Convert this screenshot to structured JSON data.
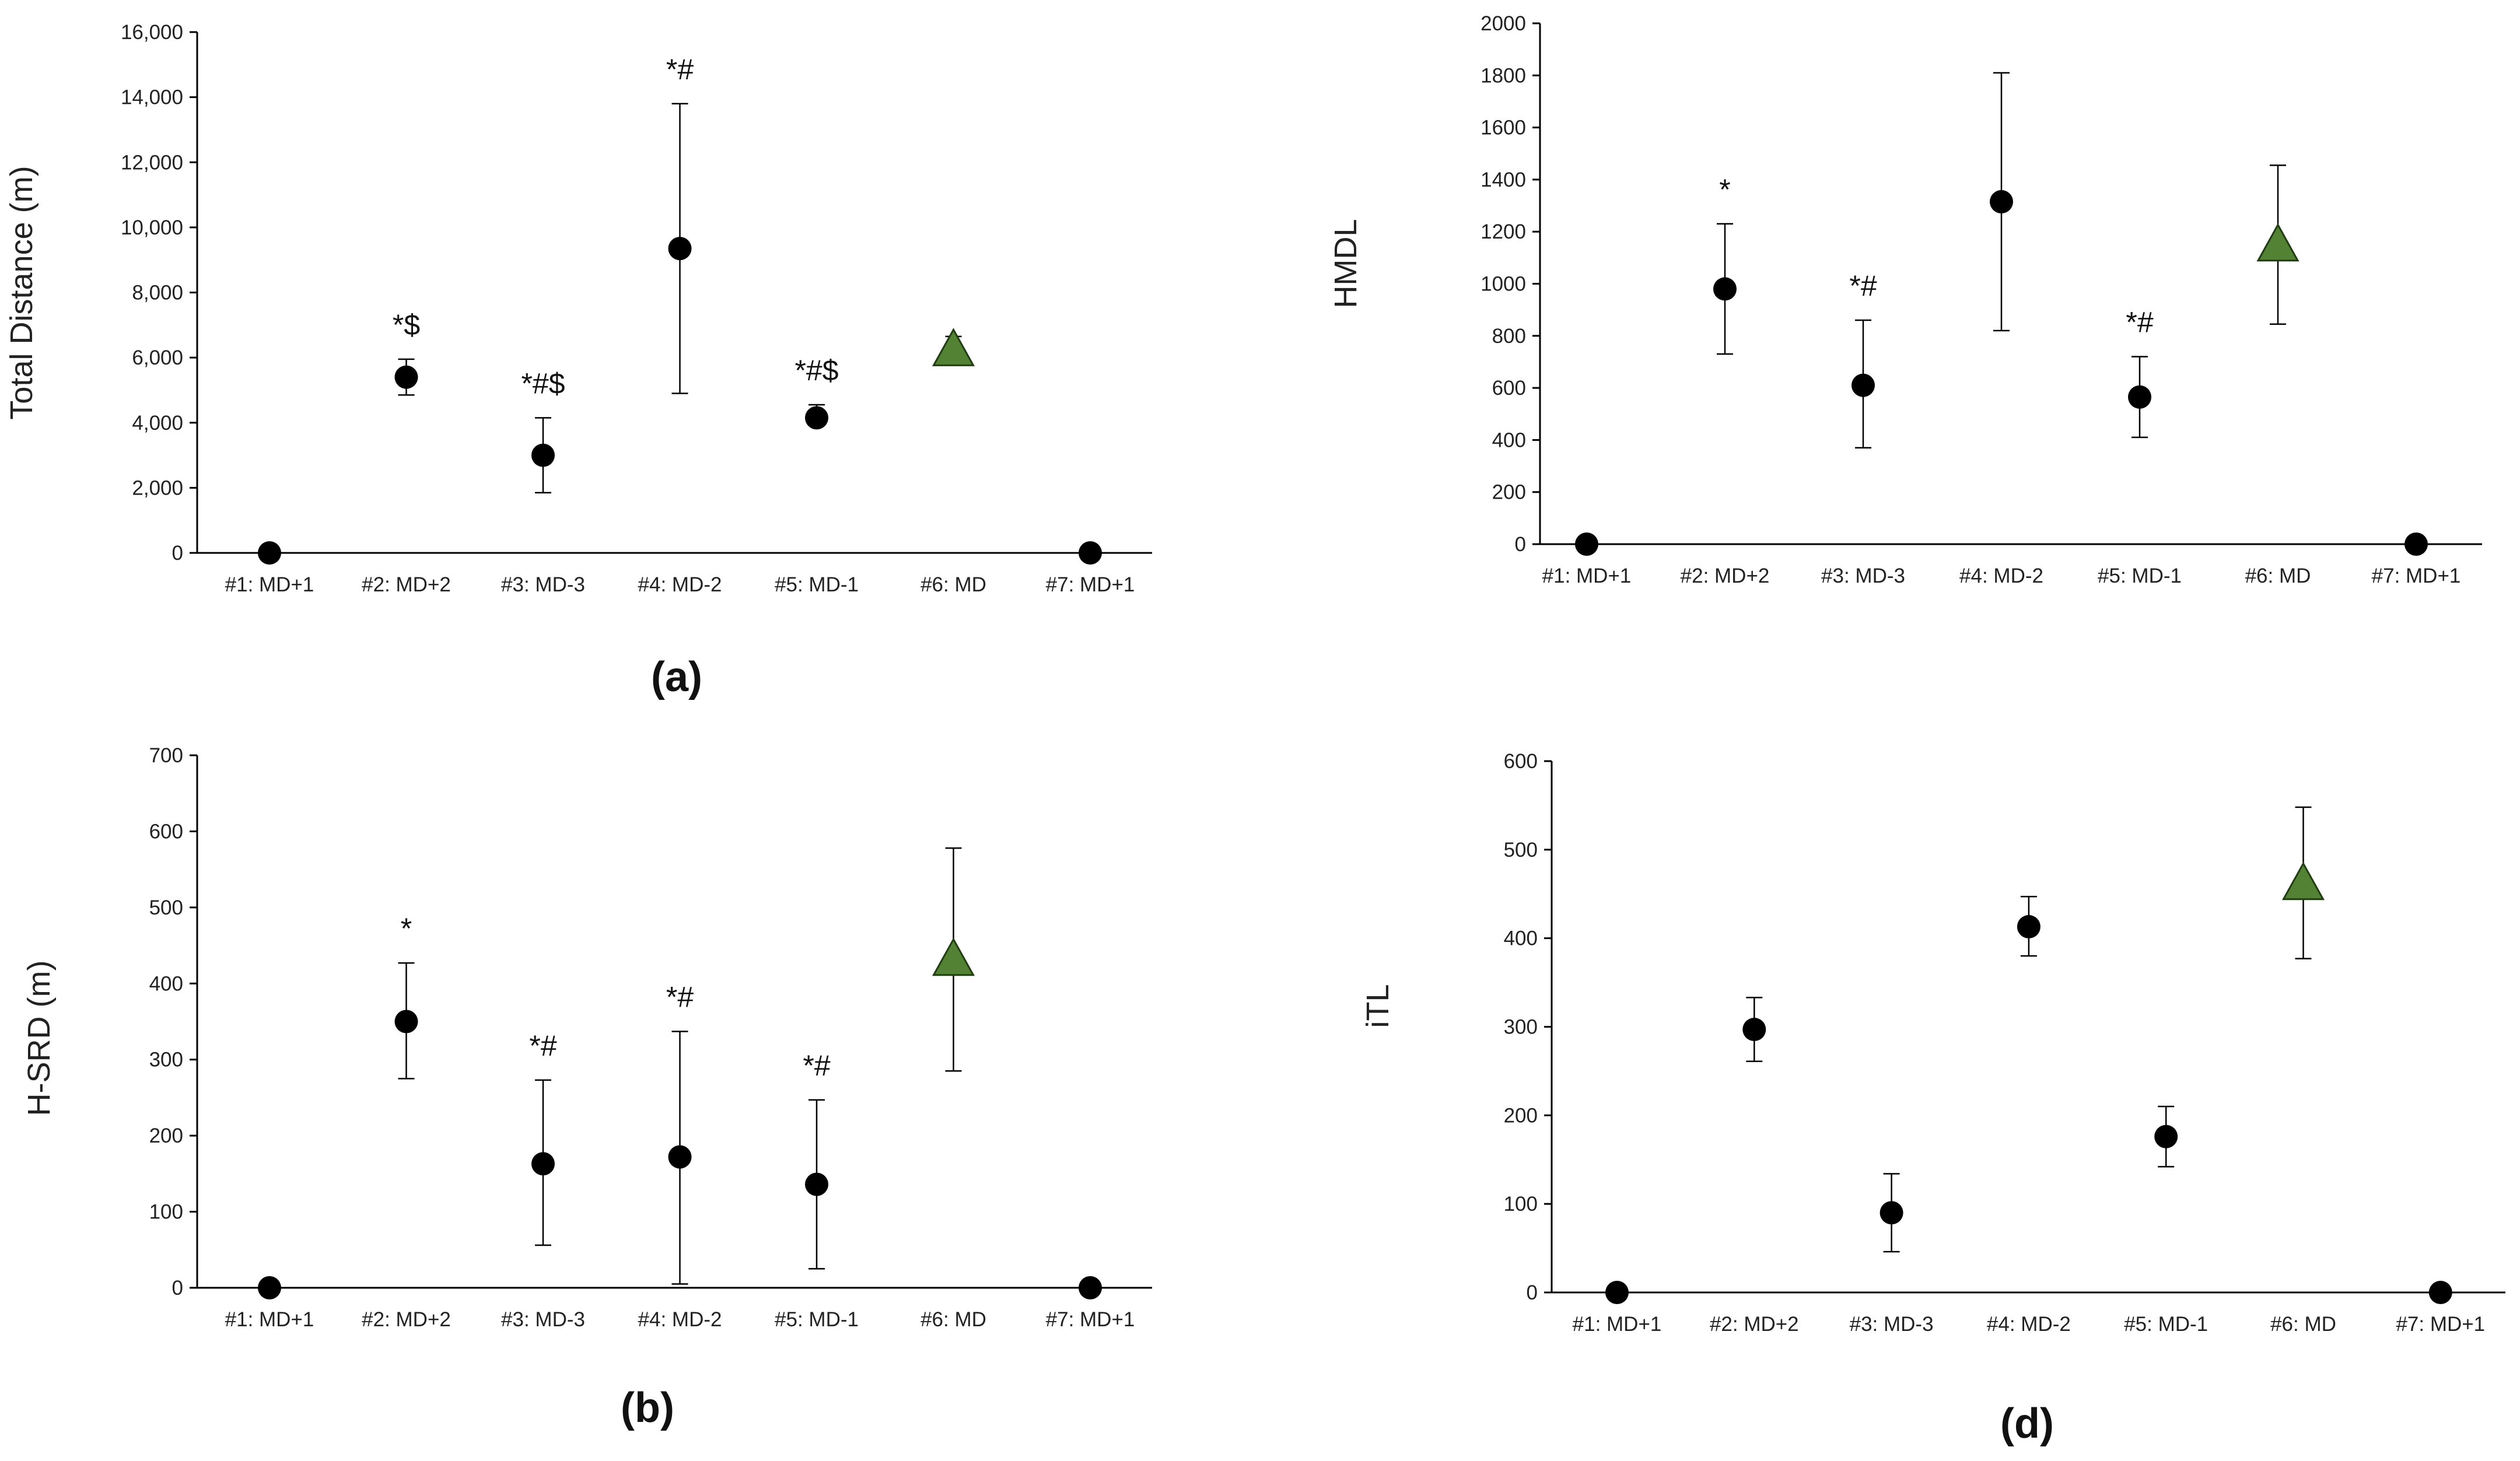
{
  "chart_data": [
    {
      "id": "a",
      "type": "scatter",
      "panel_label": "(a)",
      "title": "",
      "xlabel": "",
      "ylabel": "Total Distance (m)",
      "grid": false,
      "ylim": [
        0,
        16000
      ],
      "yticks": [
        0,
        2000,
        4000,
        6000,
        8000,
        10000,
        12000,
        14000,
        16000
      ],
      "ytick_labels": [
        "0",
        "2,000",
        "4,000",
        "6,000",
        "8,000",
        "10,000",
        "12,000",
        "14,000",
        "16,000"
      ],
      "categories": [
        "#1: MD+1",
        "#2: MD+2",
        "#3: MD-3",
        "#4: MD-2",
        "#5: MD-1",
        "#6: MD",
        "#7: MD+1"
      ],
      "values": [
        0,
        5400,
        3000,
        9350,
        4150,
        6250,
        0
      ],
      "error_low": [
        null,
        4850,
        1850,
        4900,
        3950,
        6150,
        null
      ],
      "error_high": [
        null,
        5950,
        4150,
        13800,
        4550,
        6650,
        null
      ],
      "markers": [
        "circle",
        "circle",
        "circle",
        "circle",
        "circle",
        "triangle",
        "circle"
      ],
      "annotations": [
        "",
        "*$",
        "*#$",
        "*#",
        "*#$",
        "",
        ""
      ]
    },
    {
      "id": "c",
      "type": "scatter",
      "panel_label": "",
      "title": "",
      "xlabel": "",
      "ylabel": "HMDL",
      "grid": false,
      "ylim": [
        0,
        2000
      ],
      "yticks": [
        0,
        200,
        400,
        600,
        800,
        1000,
        1200,
        1400,
        1600,
        1800,
        2000
      ],
      "ytick_labels": [
        "0",
        "200",
        "400",
        "600",
        "800",
        "1000",
        "1200",
        "1400",
        "1600",
        "1800",
        "2000"
      ],
      "categories": [
        "#1: MD+1",
        "#2: MD+2",
        "#3: MD-3",
        "#4: MD-2",
        "#5: MD-1",
        "#6: MD",
        "#7: MD+1"
      ],
      "values": [
        0,
        980,
        610,
        1315,
        565,
        1150,
        0
      ],
      "error_low": [
        null,
        730,
        370,
        820,
        410,
        845,
        null
      ],
      "error_high": [
        null,
        1230,
        860,
        1810,
        720,
        1455,
        null
      ],
      "markers": [
        "circle",
        "circle",
        "circle",
        "circle",
        "circle",
        "triangle",
        "circle"
      ],
      "annotations": [
        "",
        "*",
        "*#",
        "",
        "*#",
        "",
        ""
      ]
    },
    {
      "id": "b",
      "type": "scatter",
      "panel_label": "(b)",
      "title": "",
      "xlabel": "",
      "ylabel": "H-SRD (m)",
      "grid": false,
      "ylim": [
        0,
        700
      ],
      "yticks": [
        0,
        100,
        200,
        300,
        400,
        500,
        600,
        700
      ],
      "ytick_labels": [
        "0",
        "100",
        "200",
        "300",
        "400",
        "500",
        "600",
        "700"
      ],
      "categories": [
        "#1: MD+1",
        "#2: MD+2",
        "#3: MD-3",
        "#4: MD-2",
        "#5: MD-1",
        "#6: MD",
        "#7: MD+1"
      ],
      "values": [
        0,
        350,
        163,
        172,
        136,
        432,
        0
      ],
      "error_low": [
        null,
        275,
        56,
        5,
        25,
        285,
        null
      ],
      "error_high": [
        null,
        427,
        273,
        337,
        247,
        578,
        null
      ],
      "markers": [
        "circle",
        "circle",
        "circle",
        "circle",
        "circle",
        "triangle",
        "circle"
      ],
      "annotations": [
        "",
        "*",
        "*#",
        "*#",
        "*#",
        "",
        ""
      ]
    },
    {
      "id": "d",
      "type": "scatter",
      "panel_label": "(d)",
      "title": "",
      "xlabel": "",
      "ylabel": "iTL",
      "grid": false,
      "ylim": [
        0,
        600
      ],
      "yticks": [
        0,
        100,
        200,
        300,
        400,
        500,
        600
      ],
      "ytick_labels": [
        "0",
        "100",
        "200",
        "300",
        "400",
        "500",
        "600"
      ],
      "categories": [
        "#1: MD+1",
        "#2: MD+2",
        "#3: MD-3",
        "#4: MD-2",
        "#5: MD-1",
        "#6: MD",
        "#7: MD+1"
      ],
      "values": [
        0,
        297,
        90,
        413,
        176,
        462,
        0
      ],
      "error_low": [
        null,
        261,
        46,
        380,
        142,
        377,
        null
      ],
      "error_high": [
        null,
        333,
        134,
        447,
        210,
        548,
        null
      ],
      "markers": [
        "circle",
        "circle",
        "circle",
        "circle",
        "circle",
        "triangle",
        "circle"
      ],
      "annotations": [
        "",
        "",
        "",
        "",
        "",
        "",
        ""
      ]
    }
  ],
  "colors": {
    "axis": "#000000",
    "point": "#000000",
    "triangle_fill": "#548235",
    "triangle_stroke": "#1f3d10",
    "text": "#222222"
  }
}
